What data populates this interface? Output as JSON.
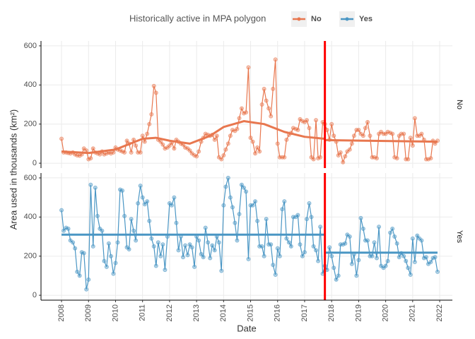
{
  "chart_data": {
    "type": "line",
    "legend_title": "Historically active in MPA polygon",
    "x_label": "Date",
    "y_label": "Area used in thousands (km²)",
    "xlim": [
      2007.24,
      2022.47
    ],
    "xticks": [
      2008,
      2009,
      2010,
      2011,
      2012,
      2013,
      2014,
      2015,
      2016,
      2017,
      2018,
      2019,
      2020,
      2021,
      2022
    ],
    "ylim": [
      -25,
      625
    ],
    "yticks": [
      0,
      200,
      400,
      600
    ],
    "grid": true,
    "vline": 2017.75,
    "vline_color": "#ff0000",
    "x": [
      2008.0,
      2008.08,
      2008.17,
      2008.25,
      2008.33,
      2008.42,
      2008.5,
      2008.58,
      2008.67,
      2008.75,
      2008.83,
      2008.92,
      2009.0,
      2009.08,
      2009.17,
      2009.25,
      2009.33,
      2009.42,
      2009.5,
      2009.58,
      2009.67,
      2009.75,
      2009.83,
      2009.92,
      2010.0,
      2010.08,
      2010.17,
      2010.25,
      2010.33,
      2010.42,
      2010.5,
      2010.58,
      2010.67,
      2010.75,
      2010.83,
      2010.92,
      2011.0,
      2011.08,
      2011.17,
      2011.25,
      2011.33,
      2011.42,
      2011.5,
      2011.58,
      2011.67,
      2011.75,
      2011.83,
      2011.92,
      2012.0,
      2012.08,
      2012.17,
      2012.25,
      2012.33,
      2012.42,
      2012.5,
      2012.58,
      2012.67,
      2012.75,
      2012.83,
      2012.92,
      2013.0,
      2013.08,
      2013.17,
      2013.25,
      2013.33,
      2013.42,
      2013.5,
      2013.58,
      2013.67,
      2013.75,
      2013.83,
      2013.92,
      2014.0,
      2014.08,
      2014.17,
      2014.25,
      2014.33,
      2014.42,
      2014.5,
      2014.58,
      2014.67,
      2014.75,
      2014.83,
      2014.92,
      2015.0,
      2015.08,
      2015.17,
      2015.25,
      2015.33,
      2015.42,
      2015.5,
      2015.58,
      2015.67,
      2015.75,
      2015.83,
      2015.92,
      2016.0,
      2016.08,
      2016.17,
      2016.25,
      2016.33,
      2016.42,
      2016.5,
      2016.58,
      2016.67,
      2016.75,
      2016.83,
      2016.92,
      2017.0,
      2017.08,
      2017.17,
      2017.25,
      2017.33,
      2017.42,
      2017.5,
      2017.58,
      2017.67,
      2017.75,
      2017.83,
      2017.92,
      2018.0,
      2018.08,
      2018.17,
      2018.25,
      2018.33,
      2018.42,
      2018.5,
      2018.58,
      2018.67,
      2018.75,
      2018.83,
      2018.92,
      2019.0,
      2019.08,
      2019.17,
      2019.25,
      2019.33,
      2019.42,
      2019.5,
      2019.58,
      2019.67,
      2019.75,
      2019.83,
      2019.92,
      2020.0,
      2020.08,
      2020.17,
      2020.25,
      2020.33,
      2020.42,
      2020.5,
      2020.58,
      2020.67,
      2020.75,
      2020.83,
      2020.92,
      2021.0,
      2021.08,
      2021.17,
      2021.25,
      2021.33,
      2021.42,
      2021.5,
      2021.58,
      2021.67,
      2021.75,
      2021.83,
      2021.92
    ],
    "series": [
      {
        "name": "No",
        "color": "#e8774f",
        "values": [
          125,
          55,
          55,
          52,
          50,
          55,
          45,
          40,
          38,
          45,
          75,
          65,
          20,
          25,
          75,
          55,
          50,
          45,
          60,
          45,
          50,
          55,
          50,
          55,
          80,
          70,
          65,
          60,
          55,
          115,
          100,
          55,
          120,
          90,
          55,
          55,
          140,
          110,
          150,
          200,
          250,
          395,
          360,
          120,
          110,
          95,
          75,
          80,
          90,
          105,
          75,
          120,
          110,
          100,
          95,
          80,
          75,
          65,
          50,
          40,
          35,
          60,
          110,
          130,
          150,
          145,
          140,
          145,
          120,
          140,
          30,
          20,
          40,
          70,
          100,
          140,
          170,
          165,
          175,
          230,
          280,
          255,
          260,
          490,
          130,
          110,
          50,
          80,
          60,
          300,
          380,
          320,
          280,
          240,
          380,
          530,
          100,
          30,
          30,
          30,
          120,
          145,
          155,
          180,
          175,
          170,
          225,
          215,
          210,
          220,
          180,
          30,
          20,
          220,
          25,
          30,
          210,
          200,
          170,
          120,
          200,
          140,
          110,
          40,
          55,
          5,
          35,
          60,
          70,
          100,
          140,
          170,
          170,
          150,
          140,
          180,
          210,
          140,
          30,
          30,
          25,
          150,
          160,
          150,
          150,
          160,
          155,
          150,
          30,
          25,
          140,
          150,
          150,
          20,
          20,
          130,
          90,
          230,
          140,
          140,
          150,
          120,
          20,
          20,
          25,
          115,
          100,
          115
        ],
        "trends": [
          {
            "x": [
              2008,
              2009,
              2010,
              2011,
              2011.5,
              2012,
              2012.75,
              2013.5,
              2014,
              2014.75,
              2015.5,
              2016.25,
              2017,
              2017.74
            ],
            "values": [
              60,
              52,
              70,
              125,
              130,
              115,
              100,
              140,
              185,
              215,
              200,
              160,
              135,
              125
            ]
          },
          {
            "x": [
              2017.76,
              2021.92
            ],
            "values": [
              118,
              110
            ]
          }
        ]
      },
      {
        "name": "Yes",
        "color": "#4a96c4",
        "values": [
          435,
          330,
          345,
          340,
          280,
          270,
          240,
          120,
          100,
          220,
          215,
          30,
          80,
          565,
          250,
          550,
          405,
          340,
          330,
          175,
          145,
          265,
          200,
          110,
          165,
          270,
          540,
          535,
          405,
          245,
          235,
          390,
          330,
          280,
          470,
          560,
          500,
          465,
          480,
          380,
          290,
          250,
          150,
          270,
          200,
          260,
          130,
          300,
          470,
          460,
          500,
          370,
          230,
          300,
          195,
          255,
          205,
          260,
          245,
          145,
          300,
          280,
          210,
          195,
          345,
          270,
          190,
          255,
          230,
          300,
          270,
          125,
          460,
          555,
          600,
          500,
          450,
          370,
          280,
          415,
          565,
          550,
          530,
          185,
          460,
          460,
          480,
          380,
          250,
          250,
          200,
          390,
          260,
          260,
          155,
          105,
          240,
          200,
          440,
          480,
          290,
          270,
          250,
          400,
          400,
          410,
          260,
          200,
          220,
          390,
          470,
          400,
          250,
          230,
          175,
          350,
          110,
          150,
          130,
          245,
          200,
          140,
          80,
          100,
          260,
          260,
          265,
          310,
          300,
          160,
          210,
          100,
          180,
          395,
          340,
          280,
          280,
          200,
          200,
          270,
          190,
          350,
          150,
          140,
          150,
          175,
          320,
          340,
          300,
          265,
          195,
          215,
          200,
          175,
          140,
          105,
          290,
          170,
          305,
          290,
          280,
          190,
          195,
          160,
          170,
          190,
          195,
          120
        ],
        "trends": [
          {
            "x": [
              2008,
              2017.74
            ],
            "values": [
              310,
              310
            ]
          },
          {
            "x": [
              2017.76,
              2021.92
            ],
            "values": [
              218,
              218
            ]
          }
        ]
      }
    ]
  }
}
